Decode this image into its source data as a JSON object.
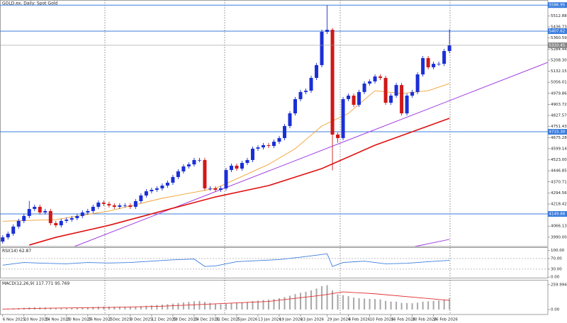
{
  "chart_data": {
    "type": "candlestick",
    "title": "GOLD.ex, Daily: Spot Gold",
    "up_color": "#1a2fd6",
    "down_color": "#d01818",
    "open": [
      3960,
      3989,
      4014,
      4063,
      4102,
      4136,
      4184,
      4199,
      4160,
      4170,
      4087,
      4072,
      4102,
      4111,
      4121,
      4136,
      4160,
      4170,
      4199,
      4228,
      4219,
      4209,
      4199,
      4209,
      4209,
      4199,
      4238,
      4277,
      4306,
      4316,
      4326,
      4345,
      4365,
      4404,
      4443,
      4477,
      4491,
      4521,
      4521,
      4326,
      4326,
      4316,
      4326,
      4452,
      4482,
      4462,
      4501,
      4521,
      4599,
      4608,
      4623,
      4618,
      4647,
      4672,
      4755,
      4842,
      4940,
      4989,
      4998,
      5086,
      5174,
      5403,
      5417,
      4696,
      4672,
      4940,
      4964,
      4901,
      4989,
      5047,
      5062,
      5096,
      5086,
      4915,
      4964,
      5037,
      4842,
      4964,
      4989,
      5110,
      5222,
      5159,
      5183,
      5183,
      5271
    ],
    "high": [
      4004,
      4029,
      4078,
      4117,
      4151,
      4240,
      4214,
      4214,
      4185,
      4185,
      4102,
      4117,
      4126,
      4136,
      4151,
      4175,
      4185,
      4214,
      4243,
      4243,
      4234,
      4224,
      4224,
      4224,
      4224,
      4253,
      4292,
      4321,
      4331,
      4341,
      4360,
      4380,
      4419,
      4458,
      4492,
      4506,
      4536,
      4536,
      4536,
      4341,
      4341,
      4341,
      4467,
      4497,
      4497,
      4516,
      4536,
      4614,
      4623,
      4638,
      4638,
      4662,
      4687,
      4770,
      4857,
      4955,
      5004,
      5013,
      5101,
      5189,
      5418,
      5585,
      5430,
      4711,
      4955,
      4979,
      4979,
      5004,
      5062,
      5077,
      5111,
      5111,
      5101,
      4979,
      5052,
      5052,
      4979,
      5004,
      5125,
      5237,
      5237,
      5198,
      5198,
      5286,
      5420
    ],
    "low": [
      3945,
      3974,
      3999,
      4048,
      4087,
      4121,
      4169,
      4145,
      4145,
      4072,
      4057,
      4057,
      4087,
      4096,
      4106,
      4121,
      4145,
      4155,
      4184,
      4204,
      4194,
      4184,
      4184,
      4194,
      4184,
      4184,
      4223,
      4262,
      4291,
      4301,
      4311,
      4330,
      4350,
      4389,
      4428,
      4462,
      4476,
      4506,
      4311,
      4311,
      4301,
      4301,
      4311,
      4437,
      4447,
      4447,
      4486,
      4506,
      4584,
      4593,
      4603,
      4603,
      4632,
      4657,
      4740,
      4827,
      4925,
      4974,
      4983,
      5071,
      5159,
      5388,
      4450,
      4640,
      4657,
      4925,
      4886,
      4886,
      4974,
      5032,
      5047,
      5071,
      4900,
      4900,
      4949,
      4827,
      4827,
      4949,
      4974,
      5095,
      5144,
      5144,
      5168,
      5168,
      5256
    ],
    "close": [
      3989,
      4014,
      4063,
      4102,
      4136,
      4184,
      4199,
      4160,
      4170,
      4087,
      4072,
      4102,
      4111,
      4121,
      4136,
      4160,
      4170,
      4199,
      4228,
      4219,
      4209,
      4199,
      4209,
      4209,
      4199,
      4238,
      4277,
      4306,
      4316,
      4326,
      4345,
      4365,
      4404,
      4443,
      4477,
      4491,
      4521,
      4521,
      4326,
      4326,
      4316,
      4326,
      4452,
      4482,
      4462,
      4501,
      4521,
      4599,
      4608,
      4623,
      4618,
      4647,
      4672,
      4755,
      4842,
      4940,
      4989,
      4998,
      5086,
      5174,
      5403,
      5417,
      4696,
      4672,
      4940,
      4964,
      4901,
      4989,
      5047,
      5062,
      5096,
      5086,
      4915,
      4964,
      5037,
      4842,
      4964,
      4989,
      5110,
      5222,
      5159,
      5183,
      5183,
      5271,
      5310.45
    ],
    "xlim": [
      -0.5,
      102.5
    ],
    "ylim": [
      3926,
      5622
    ],
    "yticks": [
      5512.88,
      5436.73,
      5360.59,
      5284.44,
      {
        "value": 5208.3,
        "label": "5208.30"
      },
      5132.15,
      5056.01,
      4979.86,
      4903.72,
      4827.57,
      4751.43,
      4675.28,
      4599.14,
      {
        "value": 4523,
        "label": "4523.00"
      },
      4446.85,
      4370.71,
      4294.56,
      4218.42,
      4142.27,
      4066.13,
      {
        "value": 3990,
        "label": "3990.00"
      }
    ],
    "xticks": [
      {
        "value": 0,
        "label": "6 Nov 2025"
      },
      {
        "value": 4,
        "label": "10 Nov 2025"
      },
      {
        "value": 8,
        "label": "14 Nov 2025"
      },
      {
        "value": 12,
        "label": "20 Nov 2025"
      },
      {
        "value": 16,
        "label": "26 Nov 2025"
      },
      {
        "value": 20,
        "label": "2 Dec 2025"
      },
      {
        "value": 24,
        "label": "8 Dec 2025"
      },
      {
        "value": 28,
        "label": "12 Dec 2025"
      },
      {
        "value": 32,
        "label": "18 Dec 2025"
      },
      {
        "value": 36,
        "label": "24 Dec 2025"
      },
      {
        "value": 40,
        "label": "31 Dec 2025"
      },
      {
        "value": 44,
        "label": "7 Jan 2026"
      },
      {
        "value": 48,
        "label": "13 Jan 2026"
      },
      {
        "value": 52,
        "label": "19 Jan 2026"
      },
      {
        "value": 56,
        "label": "23 Jan 2026"
      },
      {
        "value": 61,
        "label": "29 Jan 2026"
      },
      {
        "value": 65,
        "label": "4 Feb 2026"
      },
      {
        "value": 69,
        "label": "10 Feb 2026"
      },
      {
        "value": 73,
        "label": "16 Feb 2026"
      },
      {
        "value": 77,
        "label": "20 Feb 2026"
      },
      {
        "value": 81,
        "label": "26 Feb 2026"
      }
    ],
    "levels": {
      "color": "#3b7ddd",
      "values": [
        5586.95,
        5407.62,
        {
          "value": 4715.3,
          "label": "4715.30"
        },
        4149.88
      ]
    },
    "moving_averages": [
      {
        "color": "#f0a030",
        "x": [
          0,
          10,
          20,
          30,
          40,
          50,
          55,
          60,
          65,
          70,
          75,
          80,
          84
        ],
        "values": [
          4100,
          4111,
          4170,
          4258,
          4326,
          4491,
          4599,
          4755,
          4842,
          4998,
          4979,
          4998,
          5047
        ]
      },
      {
        "color": "#e01010",
        "x": [
          5,
          10,
          20,
          30,
          40,
          50,
          60,
          70,
          80,
          84
        ],
        "values": [
          3936,
          3989,
          4072,
          4170,
          4267,
          4345,
          4462,
          4623,
          4755,
          4808
        ]
      }
    ],
    "trendlines": [
      {
        "color": "#a040e0",
        "x": [
          13.5,
          102.5
        ],
        "values": [
          3926,
          5193
        ]
      },
      {
        "color": "#a040e0",
        "x": [
          77.5,
          84
        ],
        "values": [
          3926,
          3975
        ]
      }
    ],
    "rsi": {
      "label": "RSI(14)",
      "value": 62.87,
      "color": "#3b7ddd",
      "ylim": [
        -5,
        110
      ],
      "yticks": [
        {
          "value": 100,
          "label": "100.00"
        },
        {
          "value": 70,
          "label": "70.00"
        },
        {
          "value": 30,
          "label": "30.00"
        },
        {
          "value": 0,
          "label": "0.00"
        }
      ],
      "levels": [
        70,
        30
      ],
      "x": [
        0,
        4,
        8,
        12,
        16,
        20,
        24,
        28,
        32,
        36,
        38,
        40,
        44,
        48,
        52,
        56,
        60,
        61,
        62,
        64,
        68,
        72,
        76,
        80,
        84
      ],
      "values": [
        45,
        55,
        52,
        50,
        55,
        53,
        55,
        60,
        65,
        68,
        40,
        42,
        58,
        62,
        66,
        75,
        85,
        88,
        40,
        55,
        60,
        50,
        52,
        58,
        63
      ]
    },
    "macd": {
      "label": "MACD(12,26,9)",
      "main": 117.771,
      "signal_value": 95.769,
      "ylim": [
        -52,
        304
      ],
      "yticks": [
        {
          "value": 259.994,
          "label": "259.994"
        },
        {
          "value": 0,
          "label": "0.00"
        }
      ],
      "histogram_color": "#a8a8a8",
      "signal_color": "#e03030",
      "histogram": [
        5,
        8,
        12,
        15,
        18,
        22,
        25,
        24,
        23,
        20,
        18,
        17,
        17,
        18,
        20,
        22,
        24,
        27,
        30,
        31,
        31,
        30,
        30,
        29,
        29,
        31,
        35,
        40,
        44,
        48,
        52,
        56,
        62,
        68,
        74,
        80,
        86,
        90,
        80,
        70,
        62,
        56,
        60,
        66,
        70,
        75,
        80,
        88,
        94,
        100,
        104,
        110,
        118,
        130,
        145,
        162,
        175,
        185,
        200,
        220,
        245,
        255,
        200,
        160,
        150,
        140,
        125,
        118,
        115,
        112,
        110,
        106,
        90,
        84,
        82,
        70,
        68,
        66,
        72,
        82,
        86,
        90,
        95,
        105,
        117.771
      ],
      "signal_x": [
        0,
        10,
        20,
        30,
        40,
        50,
        60,
        64,
        70,
        80,
        84
      ],
      "signal": [
        5,
        15,
        22,
        35,
        60,
        85,
        150,
        185,
        165,
        115,
        95.769
      ]
    }
  }
}
